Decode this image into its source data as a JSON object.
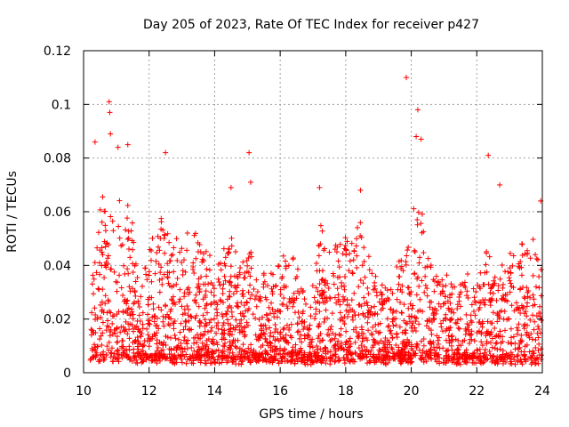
{
  "chart_data": {
    "type": "scatter",
    "title": "Day 205 of 2023, Rate Of TEC Index for receiver p427",
    "xlabel": "GPS time / hours",
    "ylabel": "ROTI / TECUs",
    "xlim": [
      10,
      24
    ],
    "ylim": [
      0,
      0.12
    ],
    "x_ticks": [
      10,
      12,
      14,
      16,
      18,
      20,
      22,
      24
    ],
    "x_tick_labels": [
      "10",
      "12",
      "14",
      "16",
      "18",
      "20",
      "22",
      "24"
    ],
    "y_ticks": [
      0,
      0.02,
      0.04,
      0.06,
      0.08,
      0.1,
      0.12
    ],
    "y_tick_labels": [
      "0",
      "0.02",
      "0.04",
      "0.06",
      "0.08",
      "0.1",
      "0.12"
    ],
    "grid": true,
    "marker": "plus",
    "series_color": "#ff0000",
    "notable_points": [
      {
        "x": 19.85,
        "y": 0.11
      },
      {
        "x": 10.78,
        "y": 0.101
      },
      {
        "x": 10.8,
        "y": 0.097
      },
      {
        "x": 20.2,
        "y": 0.098
      },
      {
        "x": 10.35,
        "y": 0.086
      },
      {
        "x": 10.82,
        "y": 0.089
      },
      {
        "x": 12.5,
        "y": 0.082
      },
      {
        "x": 15.05,
        "y": 0.082
      },
      {
        "x": 22.35,
        "y": 0.081
      },
      {
        "x": 11.05,
        "y": 0.084
      },
      {
        "x": 11.35,
        "y": 0.085
      },
      {
        "x": 20.15,
        "y": 0.088
      },
      {
        "x": 20.3,
        "y": 0.087
      },
      {
        "x": 17.2,
        "y": 0.069
      },
      {
        "x": 18.45,
        "y": 0.068
      },
      {
        "x": 14.5,
        "y": 0.069
      },
      {
        "x": 22.7,
        "y": 0.07
      },
      {
        "x": 15.1,
        "y": 0.071
      },
      {
        "x": 23.95,
        "y": 0.064
      }
    ],
    "activity_profile": {
      "x": [
        10.0,
        10.3,
        10.6,
        10.9,
        11.2,
        11.5,
        11.8,
        12.1,
        12.4,
        12.7,
        13.0,
        13.3,
        13.6,
        13.9,
        14.2,
        14.5,
        14.8,
        15.1,
        15.4,
        15.7,
        16.0,
        16.3,
        16.6,
        16.9,
        17.2,
        17.5,
        17.8,
        18.1,
        18.4,
        18.7,
        19.0,
        19.3,
        19.6,
        19.9,
        20.2,
        20.5,
        20.8,
        21.1,
        21.4,
        21.7,
        22.0,
        22.3,
        22.6,
        22.9,
        23.2,
        23.5,
        23.8,
        24.0
      ],
      "upper_envelope": [
        0.0,
        0.05,
        0.065,
        0.07,
        0.068,
        0.055,
        0.045,
        0.05,
        0.06,
        0.045,
        0.055,
        0.05,
        0.05,
        0.045,
        0.045,
        0.05,
        0.04,
        0.045,
        0.035,
        0.035,
        0.04,
        0.045,
        0.035,
        0.02,
        0.055,
        0.05,
        0.045,
        0.05,
        0.06,
        0.045,
        0.035,
        0.03,
        0.04,
        0.045,
        0.07,
        0.045,
        0.04,
        0.035,
        0.03,
        0.035,
        0.03,
        0.045,
        0.035,
        0.04,
        0.045,
        0.05,
        0.055,
        0.045
      ],
      "baseline": [
        0.0,
        0.006,
        0.008,
        0.007,
        0.008,
        0.006,
        0.007,
        0.006,
        0.008,
        0.006,
        0.007,
        0.006,
        0.007,
        0.006,
        0.006,
        0.007,
        0.006,
        0.007,
        0.006,
        0.006,
        0.006,
        0.006,
        0.006,
        0.005,
        0.007,
        0.006,
        0.006,
        0.007,
        0.008,
        0.006,
        0.006,
        0.006,
        0.006,
        0.006,
        0.008,
        0.007,
        0.007,
        0.006,
        0.006,
        0.006,
        0.006,
        0.006,
        0.006,
        0.006,
        0.006,
        0.006,
        0.006,
        0.006
      ]
    }
  }
}
